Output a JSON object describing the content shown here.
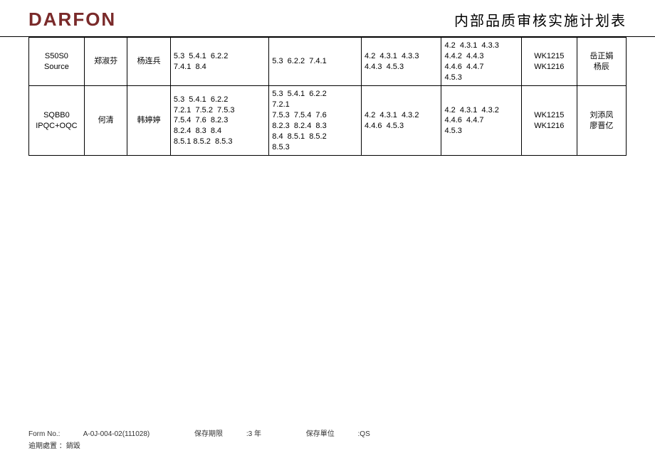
{
  "header": {
    "logo_text": "DARFON",
    "title": "内部品质审核实施计划表",
    "logo_color": "#7a2a2a"
  },
  "table": {
    "rows": [
      {
        "id": "S50S0\nSource",
        "name1": "郑淑芬",
        "name2": "杨连兵",
        "codesA": "5.3  5.4.1  6.2.2\n7.4.1  8.4",
        "codesB": "5.3  6.2.2  7.4.1",
        "codesC": "4.2  4.3.1  4.3.3\n4.4.3  4.5.3",
        "codesD": "4.2  4.3.1  4.3.3\n4.4.2  4.4.3\n4.4.6  4.4.7\n4.5.3",
        "weeks": "WK1215\nWK1216",
        "name3": "岳正娟\n杨辰"
      },
      {
        "id": "SQBB0\nIPQC+OQC",
        "name1": "何清",
        "name2": "韩婷婷",
        "codesA": "5.3  5.4.1  6.2.2\n7.2.1  7.5.2  7.5.3\n7.5.4  7.6  8.2.3\n8.2.4  8.3  8.4\n8.5.1 8.5.2  8.5.3",
        "codesB": "5.3  5.4.1  6.2.2\n7.2.1\n7.5.3  7.5.4  7.6\n8.2.3  8.2.4  8.3\n8.4  8.5.1  8.5.2\n8.5.3",
        "codesC": "4.2  4.3.1  4.3.2\n4.4.6  4.5.3",
        "codesD": "4.2  4.3.1  4.3.2\n4.4.6  4.4.7\n4.5.3",
        "weeks": "WK1215\nWK1216",
        "name3": "刘添凤\n廖晋亿"
      }
    ]
  },
  "footer": {
    "form_no_label": "Form No.:",
    "form_no": "A-0J-004-02(111028)",
    "retain_period_label": "保存期限",
    "retain_period_value": ":3 年",
    "retain_unit_label": "保存單位",
    "retain_unit_value": ":QS",
    "overdue_label": "逾期處置",
    "overdue_value": "：銷毀"
  }
}
